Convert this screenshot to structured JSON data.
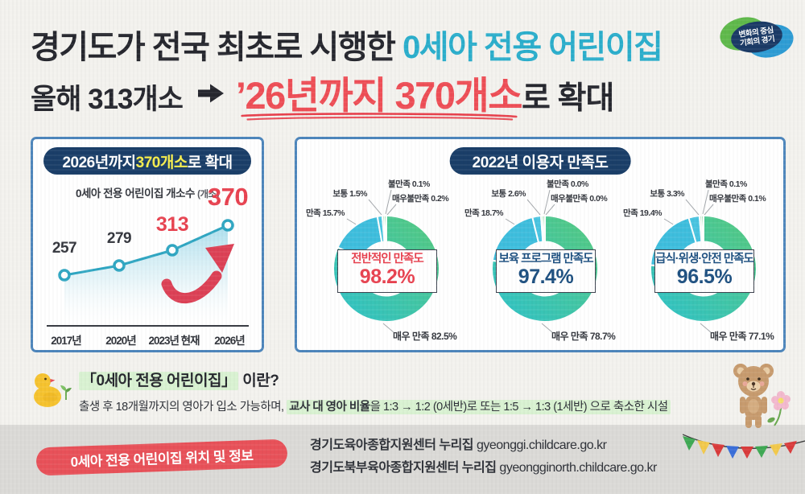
{
  "colors": {
    "accent_red": "#EE4E56",
    "accent_teal": "#2BAECC",
    "navy": "#1A3E68",
    "yellow": "#F8EE4E",
    "panel_border": "#4E86BC",
    "line_teal": "#2FA6C2",
    "donut_green": "#56CA7D",
    "donut_teal_grad": "#2EC2CB",
    "donut_cyan": "#3EBEDD",
    "highlight_green": "#D9F2D2",
    "footer_gray": "#DBDAD7",
    "badge_red": "#E85159"
  },
  "logo": {
    "line1": "변화의 중심",
    "line2": "기회의 경기"
  },
  "header": {
    "line1_prefix": "경기도가 전국 최초로 시행한 ",
    "line1_highlight": "0세아 전용 어린이집",
    "line2_prefix": "올해 313개소",
    "line2_highlight": "’26년까지 370개소",
    "line2_suffix": "로 확대"
  },
  "left_panel": {
    "pill_prefix": "2026년까지 ",
    "pill_highlight": "370개소",
    "pill_suffix": "로 확대"
  },
  "right_panel": {
    "pill": "2022년 이용자 만족도"
  },
  "chart_data": [
    {
      "type": "line",
      "title": "2026년까지 370개소로 확대",
      "ylabel": "0세아 전용 어린이집 개소수",
      "ylabel_unit": "(개소)",
      "categories": [
        "2017년",
        "2020년",
        "2023년 현재",
        "2026년"
      ],
      "values": [
        257,
        279,
        313,
        370
      ],
      "highlight_indices": [
        2,
        3
      ],
      "grid": false,
      "annotation": "red upward curved arrow"
    },
    {
      "type": "donut",
      "title": "전반적인 만족도",
      "total": "98.2%",
      "title_color": "#E8414F",
      "segments": [
        {
          "label": "매우 만족",
          "value": 82.5
        },
        {
          "label": "만족",
          "value": 15.7
        },
        {
          "label": "보통",
          "value": 1.5
        },
        {
          "label": "불만족",
          "value": 0.1
        },
        {
          "label": "매우불만족",
          "value": 0.2
        }
      ]
    },
    {
      "type": "donut",
      "title": "보육 프로그램 만족도",
      "total": "97.4%",
      "title_color": "#1C4F80",
      "segments": [
        {
          "label": "매우 만족",
          "value": 78.7
        },
        {
          "label": "만족",
          "value": 18.7
        },
        {
          "label": "보통",
          "value": 2.6
        },
        {
          "label": "불만족",
          "value": 0.0
        },
        {
          "label": "매우불만족",
          "value": 0.0
        }
      ]
    },
    {
      "type": "donut",
      "title": "급식·위생·안전 만족도",
      "total": "96.5%",
      "title_color": "#1C4F80",
      "segments": [
        {
          "label": "매우 만족",
          "value": 77.1
        },
        {
          "label": "만족",
          "value": 19.4
        },
        {
          "label": "보통",
          "value": 3.3
        },
        {
          "label": "불만족",
          "value": 0.1
        },
        {
          "label": "매우불만족",
          "value": 0.1
        }
      ]
    }
  ],
  "info": {
    "title_highlight": "「0세아 전용 어린이집」",
    "title_suffix": " 이란?",
    "body_prefix": "출생 후 18개월까지의 영아가 입소 가능하며, ",
    "body_bold": "교사 대 영아 비율",
    "body_highlight_rest": "을 1:3 → 1:2 (0세반)로 또는 1:5 → 1:3 (1세반) 으로 축소한 시설"
  },
  "footer": {
    "badge": "0세아 전용 어린이집 위치 및 정보",
    "lines": [
      {
        "label": "경기도육아종합지원센터 누리집",
        "url": "gyeonggi.childcare.go.kr"
      },
      {
        "label": "경기도북부육아종합지원센터 누리집",
        "url": "gyeongginorth.childcare.go.kr"
      }
    ]
  }
}
